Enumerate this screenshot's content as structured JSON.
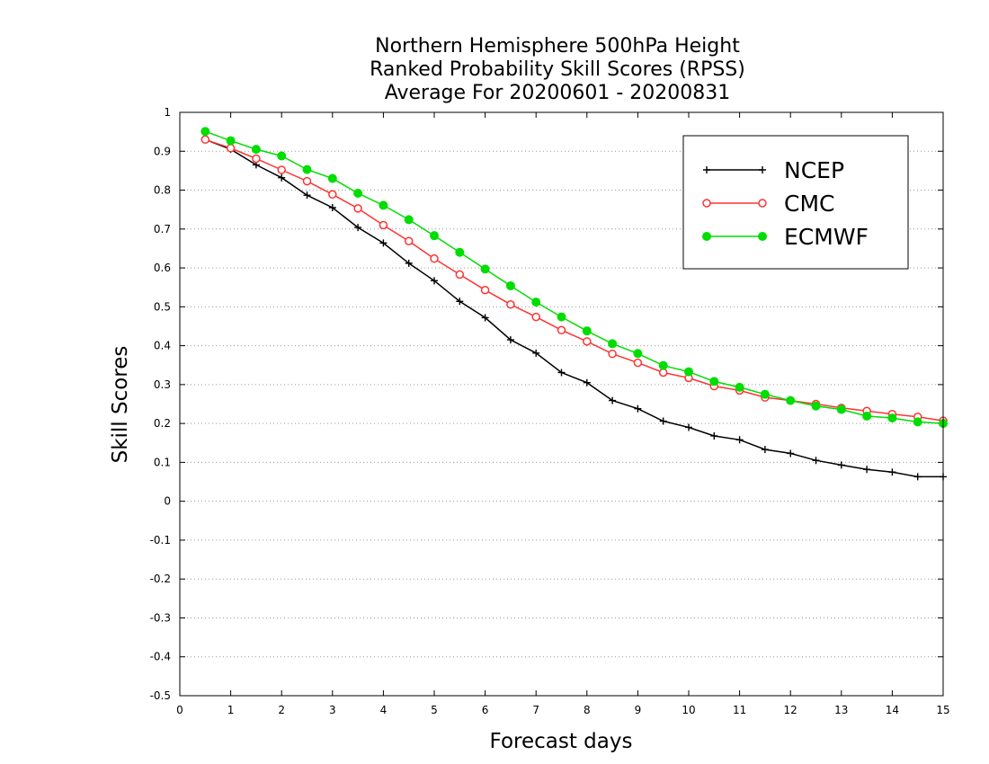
{
  "chart_data": {
    "type": "line",
    "title": [
      "Northern Hemisphere 500hPa Height",
      "Ranked Probability Skill Scores (RPSS)",
      "Average For 20200601 - 20200831"
    ],
    "xlabel": "Forecast days",
    "ylabel": "Skill Scores",
    "xlim": [
      0,
      15
    ],
    "ylim": [
      -0.5,
      1
    ],
    "xticks": [
      "0",
      "1",
      "2",
      "3",
      "4",
      "5",
      "6",
      "7",
      "8",
      "9",
      "10",
      "11",
      "12",
      "13",
      "14",
      "15"
    ],
    "yticks": [
      "1",
      "0.9",
      "0.8",
      "0.7",
      "0.6",
      "0.5",
      "0.4",
      "0.3",
      "0.2",
      "0.1",
      "0",
      "-0.1",
      "-0.2",
      "-0.3",
      "-0.4",
      "-0.5"
    ],
    "grid": "horizontal dotted",
    "legend_position": "top-right",
    "x": [
      0.5,
      1,
      1.5,
      2,
      2.5,
      3,
      3.5,
      4,
      4.5,
      5,
      5.5,
      6,
      6.5,
      7,
      7.5,
      8,
      8.5,
      9,
      9.5,
      10,
      10.5,
      11,
      11.5,
      12,
      12.5,
      13,
      13.5,
      14,
      14.5,
      15
    ],
    "series": [
      {
        "name": "NCEP",
        "color": "#000000",
        "marker": "plus",
        "values": [
          0.93,
          0.905,
          0.865,
          0.832,
          0.787,
          0.755,
          0.704,
          0.664,
          0.612,
          0.567,
          0.514,
          0.472,
          0.415,
          0.381,
          0.331,
          0.305,
          0.259,
          0.238,
          0.206,
          0.19,
          0.168,
          0.158,
          0.133,
          0.123,
          0.105,
          0.093,
          0.082,
          0.075,
          0.063,
          0.063
        ]
      },
      {
        "name": "CMC",
        "color": "#ff3333",
        "marker": "open-circle",
        "values": [
          0.93,
          0.908,
          0.881,
          0.852,
          0.823,
          0.789,
          0.753,
          0.71,
          0.669,
          0.624,
          0.583,
          0.543,
          0.506,
          0.474,
          0.44,
          0.411,
          0.379,
          0.356,
          0.331,
          0.317,
          0.296,
          0.285,
          0.267,
          0.259,
          0.25,
          0.24,
          0.232,
          0.224,
          0.217,
          0.207
        ]
      },
      {
        "name": "ECMWF",
        "color": "#00dd00",
        "marker": "filled-circle",
        "values": [
          0.951,
          0.927,
          0.905,
          0.888,
          0.853,
          0.83,
          0.792,
          0.761,
          0.724,
          0.683,
          0.64,
          0.597,
          0.554,
          0.512,
          0.474,
          0.438,
          0.405,
          0.38,
          0.349,
          0.333,
          0.308,
          0.293,
          0.275,
          0.259,
          0.245,
          0.236,
          0.219,
          0.214,
          0.204,
          0.2
        ]
      }
    ]
  }
}
